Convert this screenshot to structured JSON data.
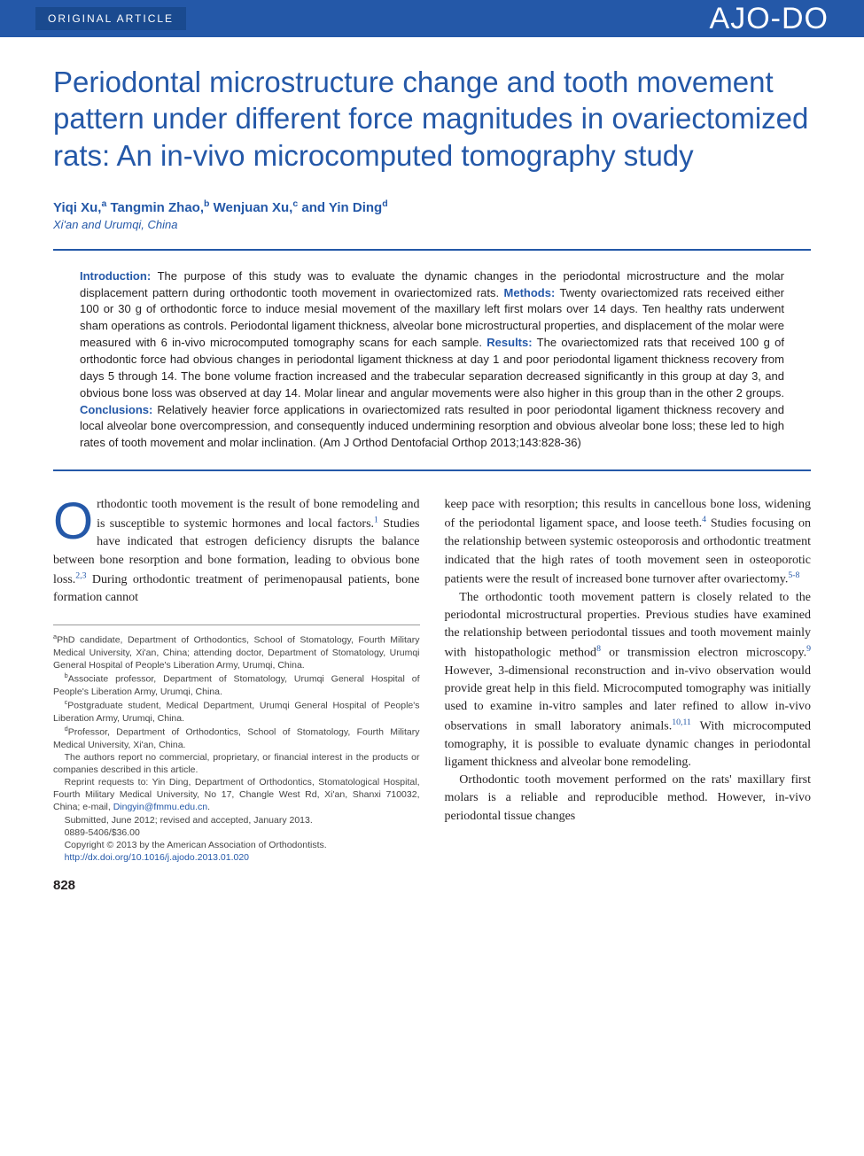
{
  "header": {
    "article_type": "ORIGINAL ARTICLE",
    "journal_logo": "AJO-DO"
  },
  "title": "Periodontal microstructure change and tooth movement pattern under different force magnitudes in ovariectomized rats: An in-vivo microcomputed tomography study",
  "authors_html": "Yiqi Xu,<sup>a</sup> Tangmin Zhao,<sup>b</sup> Wenjuan Xu,<sup>c</sup> and Yin Ding<sup>d</sup>",
  "affiliation_location": "Xi'an and Urumqi, China",
  "abstract": {
    "intro_label": "Introduction:",
    "intro_text": " The purpose of this study was to evaluate the dynamic changes in the periodontal microstructure and the molar displacement pattern during orthodontic tooth movement in ovariectomized rats. ",
    "methods_label": "Methods:",
    "methods_text": " Twenty ovariectomized rats received either 100 or 30 g of orthodontic force to induce mesial movement of the maxillary left first molars over 14 days. Ten healthy rats underwent sham operations as controls. Periodontal ligament thickness, alveolar bone microstructural properties, and displacement of the molar were measured with 6 in-vivo microcomputed tomography scans for each sample. ",
    "results_label": "Results:",
    "results_text": " The ovariectomized rats that received 100 g of orthodontic force had obvious changes in periodontal ligament thickness at day 1 and poor periodontal ligament thickness recovery from days 5 through 14. The bone volume fraction increased and the trabecular separation decreased significantly in this group at day 3, and obvious bone loss was observed at day 14. Molar linear and angular movements were also higher in this group than in the other 2 groups. ",
    "conclusions_label": "Conclusions:",
    "conclusions_text": " Relatively heavier force applications in ovariectomized rats resulted in poor periodontal ligament thickness recovery and local alveolar bone overcompression, and consequently induced undermining resorption and obvious alveolar bone loss; these led to high rates of tooth movement and molar inclination. (Am J Orthod Dentofacial Orthop 2013;143:828-36)"
  },
  "body": {
    "col1": {
      "p1_html": "rthodontic tooth movement is the result of bone remodeling and is susceptible to systemic hormones and local factors.<sup class=\"sup-link\">1</sup> Studies have indicated that estrogen deficiency disrupts the balance between bone resorption and bone formation, leading to obvious bone loss.<sup class=\"sup-link\">2,3</sup> During orthodontic treatment of perimenopausal patients, bone formation cannot"
    },
    "col2": {
      "p1_html": "keep pace with resorption; this results in cancellous bone loss, widening of the periodontal ligament space, and loose teeth.<sup class=\"sup-link\">4</sup> Studies focusing on the relationship between systemic osteoporosis and orthodontic treatment indicated that the high rates of tooth movement seen in osteoporotic patients were the result of increased bone turnover after ovariectomy.<sup class=\"sup-link\">5-8</sup>",
      "p2_html": "The orthodontic tooth movement pattern is closely related to the periodontal microstructural properties. Previous studies have examined the relationship between periodontal tissues and tooth movement mainly with histopathologic method<sup class=\"sup-link\">8</sup> or transmission electron microscopy.<sup class=\"sup-link\">9</sup> However, 3-dimensional reconstruction and in-vivo observation would provide great help in this field. Microcomputed tomography was initially used to examine in-vitro samples and later refined to allow in-vivo observations in small laboratory animals.<sup class=\"sup-link\">10,11</sup> With microcomputed tomography, it is possible to evaluate dynamic changes in periodontal ligament thickness and alveolar bone remodeling.",
      "p3_html": "Orthodontic tooth movement performed on the rats' maxillary first molars is a reliable and reproducible method. However, in-vivo periodontal tissue changes"
    }
  },
  "footnotes": {
    "a": "PhD candidate, Department of Orthodontics, School of Stomatology, Fourth Military Medical University, Xi'an, China; attending doctor, Department of Stomatology, Urumqi General Hospital of People's Liberation Army, Urumqi, China.",
    "b": "Associate professor, Department of Stomatology, Urumqi General Hospital of People's Liberation Army, Urumqi, China.",
    "c": "Postgraduate student, Medical Department, Urumqi General Hospital of People's Liberation Army, Urumqi, China.",
    "d": "Professor, Department of Orthodontics, School of Stomatology, Fourth Military Medical University, Xi'an, China.",
    "disclosure": "The authors report no commercial, proprietary, or financial interest in the products or companies described in this article.",
    "reprint": "Reprint requests to: Yin Ding, Department of Orthodontics, Stomatological Hospital, Fourth Military Medical University, No 17, Changle West Rd, Xi'an, Shanxi 710032, China; e-mail, ",
    "email": "Dingyin@fmmu.edu.cn",
    "submitted": "Submitted, June 2012; revised and accepted, January 2013.",
    "issn": "0889-5406/$36.00",
    "copyright": "Copyright © 2013 by the American Association of Orthodontists.",
    "doi": "http://dx.doi.org/10.1016/j.ajodo.2013.01.020"
  },
  "page_number": "828",
  "colors": {
    "primary_blue": "#2458a8",
    "header_dark_blue": "#1a4a8f",
    "text": "#231f20",
    "footnote_text": "#444444"
  },
  "typography": {
    "title_fontsize": 33,
    "abstract_fontsize": 13,
    "body_fontsize": 14,
    "footnote_fontsize": 10.5
  }
}
